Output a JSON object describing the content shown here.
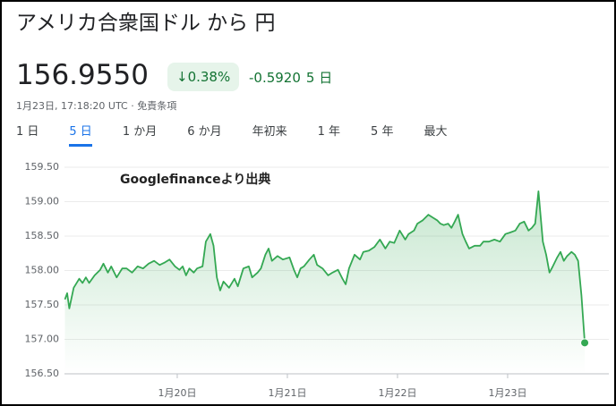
{
  "header": {
    "title": "アメリカ合衆国ドル から 円",
    "price": "156.9550",
    "change_percent": "0.38%",
    "change": "-0.5920",
    "period": "5 日",
    "timestamp": "1月23日, 17:18:20 UTC",
    "disclaimer": "免責条項"
  },
  "tabs": [
    "1 日",
    "5 日",
    "1 か月",
    "6 か月",
    "年初来",
    "1 年",
    "5 年",
    "最大"
  ],
  "selected_tab": 1,
  "chart_data": {
    "type": "line",
    "annotation": "Googlefinanceより出典",
    "color": "#34a853",
    "grid": true,
    "xlim": [
      18.976,
      23.919
    ],
    "xticks": [
      {
        "value": 20,
        "label": "1月20日"
      },
      {
        "value": 21,
        "label": "1月21日"
      },
      {
        "value": 22,
        "label": "1月22日"
      },
      {
        "value": 23,
        "label": "1月23日"
      }
    ],
    "ylim": [
      156.5,
      159.5
    ],
    "yticks": [
      {
        "value": 156.5,
        "label": "156.50"
      },
      {
        "value": 157,
        "label": "157.00"
      },
      {
        "value": 157.5,
        "label": "157.50"
      },
      {
        "value": 158,
        "label": "158.00"
      },
      {
        "value": 158.5,
        "label": "158.50"
      },
      {
        "value": 159,
        "label": "159.00"
      },
      {
        "value": 159.5,
        "label": "159.50"
      }
    ],
    "x": [
      18.98,
      19.0,
      19.02,
      19.06,
      19.11,
      19.14,
      19.17,
      19.2,
      19.25,
      19.3,
      19.33,
      19.37,
      19.4,
      19.45,
      19.5,
      19.54,
      19.59,
      19.64,
      19.69,
      19.74,
      19.79,
      19.84,
      19.89,
      19.93,
      19.98,
      20.02,
      20.05,
      20.08,
      20.11,
      20.15,
      20.18,
      20.23,
      20.26,
      20.3,
      20.33,
      20.36,
      20.39,
      20.42,
      20.47,
      20.52,
      20.55,
      20.6,
      20.65,
      20.68,
      20.73,
      20.76,
      20.8,
      20.83,
      20.86,
      20.91,
      20.96,
      21.02,
      21.06,
      21.09,
      21.12,
      21.15,
      21.2,
      21.24,
      21.27,
      21.32,
      21.37,
      21.41,
      21.46,
      21.5,
      21.53,
      21.56,
      21.61,
      21.66,
      21.69,
      21.74,
      21.79,
      21.84,
      21.89,
      21.93,
      21.97,
      22.02,
      22.07,
      22.1,
      22.15,
      22.18,
      22.23,
      22.28,
      22.33,
      22.36,
      22.39,
      22.42,
      22.46,
      22.49,
      22.52,
      22.55,
      22.59,
      22.62,
      22.65,
      22.7,
      22.75,
      22.78,
      22.83,
      22.88,
      22.93,
      22.98,
      23.02,
      23.07,
      23.11,
      23.15,
      23.19,
      23.22,
      23.25,
      23.28,
      23.32,
      23.35,
      23.38,
      23.41,
      23.45,
      23.48,
      23.51,
      23.54,
      23.58,
      23.61,
      23.64,
      23.67,
      23.7
    ],
    "values": [
      157.58,
      157.67,
      157.45,
      157.75,
      157.88,
      157.82,
      157.9,
      157.82,
      157.93,
      158.01,
      158.1,
      157.97,
      158.06,
      157.9,
      158.03,
      158.03,
      157.97,
      158.06,
      158.03,
      158.1,
      158.14,
      158.08,
      158.12,
      158.16,
      158.06,
      158.01,
      158.06,
      157.93,
      158.03,
      157.97,
      158.03,
      158.06,
      158.42,
      158.53,
      158.36,
      157.9,
      157.71,
      157.84,
      157.75,
      157.88,
      157.77,
      158.03,
      158.06,
      157.9,
      157.97,
      158.03,
      158.23,
      158.32,
      158.14,
      158.21,
      158.16,
      158.19,
      158.01,
      157.9,
      158.03,
      158.06,
      158.16,
      158.23,
      158.08,
      158.03,
      157.93,
      157.97,
      158.01,
      157.88,
      157.8,
      158.03,
      158.23,
      158.16,
      158.27,
      158.29,
      158.34,
      158.45,
      158.32,
      158.42,
      158.4,
      158.58,
      158.45,
      158.53,
      158.58,
      158.68,
      158.73,
      158.81,
      158.76,
      158.73,
      158.68,
      158.66,
      158.68,
      158.62,
      158.71,
      158.81,
      158.53,
      158.42,
      158.32,
      158.36,
      158.36,
      158.42,
      158.42,
      158.45,
      158.42,
      158.53,
      158.55,
      158.58,
      158.68,
      158.71,
      158.58,
      158.62,
      158.68,
      159.15,
      158.42,
      158.23,
      157.97,
      158.06,
      158.19,
      158.27,
      158.14,
      158.21,
      158.27,
      158.23,
      158.14,
      157.64,
      156.95
    ]
  }
}
